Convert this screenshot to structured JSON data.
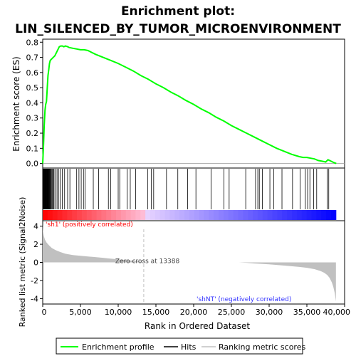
{
  "chart_data": {
    "type": "line",
    "title_line1": "Enrichment plot:",
    "title_line2": "LIN_SILENCED_BY_TUMOR_MICROENVIRONMENT",
    "es_panel": {
      "ylabel": "Enrichment score (ES)",
      "ylim": [
        -0.03,
        0.82
      ],
      "yticks": [
        "0.0",
        "0.1",
        "0.2",
        "0.3",
        "0.4",
        "0.5",
        "0.6",
        "0.7",
        "0.8"
      ],
      "ytick_values": [
        0.0,
        0.1,
        0.2,
        0.3,
        0.4,
        0.5,
        0.6,
        0.7,
        0.8
      ],
      "series": [
        {
          "name": "Enrichment profile",
          "color": "#00ff00",
          "x": [
            0,
            100,
            200,
            300,
            400,
            500,
            600,
            700,
            800,
            900,
            1000,
            1200,
            1400,
            1600,
            1800,
            2000,
            2200,
            2400,
            2600,
            2800,
            3000,
            3300,
            3500,
            4000,
            4500,
            5000,
            5500,
            6000,
            7000,
            8000,
            9000,
            10000,
            11000,
            12000,
            13000,
            14000,
            15000,
            16000,
            17000,
            18000,
            19000,
            20000,
            21000,
            22000,
            23000,
            24000,
            25000,
            26000,
            27000,
            28000,
            29000,
            30000,
            31000,
            32000,
            33000,
            34000,
            34500,
            35000,
            35500,
            36000,
            36500,
            37000,
            37500,
            37800,
            38200,
            38600,
            38900
          ],
          "y": [
            0.0,
            0.12,
            0.25,
            0.35,
            0.39,
            0.41,
            0.5,
            0.58,
            0.62,
            0.66,
            0.68,
            0.69,
            0.7,
            0.71,
            0.73,
            0.75,
            0.77,
            0.775,
            0.775,
            0.77,
            0.775,
            0.77,
            0.765,
            0.76,
            0.755,
            0.75,
            0.75,
            0.745,
            0.72,
            0.7,
            0.68,
            0.66,
            0.635,
            0.61,
            0.58,
            0.555,
            0.525,
            0.5,
            0.47,
            0.445,
            0.415,
            0.39,
            0.36,
            0.335,
            0.305,
            0.28,
            0.25,
            0.225,
            0.2,
            0.175,
            0.15,
            0.125,
            0.1,
            0.08,
            0.06,
            0.045,
            0.04,
            0.04,
            0.035,
            0.03,
            0.02,
            0.015,
            0.01,
            0.025,
            0.015,
            0.005,
            0.0
          ]
        }
      ]
    },
    "hits": [
      30,
      60,
      90,
      120,
      150,
      180,
      210,
      240,
      280,
      320,
      360,
      400,
      440,
      480,
      520,
      560,
      600,
      640,
      680,
      720,
      760,
      800,
      850,
      900,
      950,
      1000,
      1100,
      1200,
      1300,
      1400,
      1500,
      1700,
      1900,
      2100,
      2300,
      2600,
      2900,
      3300,
      3600,
      4500,
      4800,
      5100,
      5400,
      5600,
      6700,
      7400,
      8700,
      9000,
      10000,
      10200,
      11200,
      11600,
      12300,
      13900,
      14400,
      14700,
      16400,
      17900,
      19200,
      20300,
      22300,
      24000,
      24700,
      26900,
      28200,
      28500,
      28700,
      29100,
      30100,
      30600,
      31700,
      33100,
      34100,
      34800,
      35100,
      35400,
      35900,
      36300,
      37700,
      37900
    ],
    "rank_panel": {
      "ylabel": "Ranked list metric (Signal2Noise)",
      "xlabel": "Rank in Ordered Dataset",
      "ylim": [
        -4.6,
        4.6
      ],
      "yticks": [
        "4",
        "2",
        "0",
        "-2",
        "-4"
      ],
      "ytick_values": [
        4,
        2,
        0,
        -2,
        -4
      ],
      "xlim": [
        0,
        40000
      ],
      "xticks": [
        "0",
        "5,000",
        "10,000",
        "15,000",
        "20,000",
        "25,000",
        "30,000",
        "35,000",
        "40,000"
      ],
      "xtick_values": [
        0,
        5000,
        10000,
        15000,
        20000,
        25000,
        30000,
        35000,
        40000
      ],
      "metric_x": [
        0,
        50,
        150,
        300,
        500,
        800,
        1200,
        1700,
        2300,
        3000,
        4000,
        5000,
        6000,
        7000,
        8000,
        9000,
        10000,
        11000,
        12000,
        13000,
        13388,
        14000,
        16000,
        18000,
        20000,
        22000,
        24000,
        26000,
        27000,
        28000,
        30000,
        32000,
        34000,
        35000,
        36000,
        36800,
        37300,
        37700,
        38000,
        38300,
        38500,
        38700,
        38850
      ],
      "metric_y": [
        4.3,
        3.4,
        2.9,
        2.5,
        2.2,
        1.9,
        1.6,
        1.35,
        1.15,
        0.95,
        0.8,
        0.72,
        0.65,
        0.58,
        0.5,
        0.42,
        0.33,
        0.25,
        0.17,
        0.08,
        0.0,
        0.0,
        0.0,
        0.0,
        0.0,
        0.0,
        0.0,
        0.0,
        -0.05,
        -0.12,
        -0.22,
        -0.35,
        -0.5,
        -0.6,
        -0.75,
        -0.95,
        -1.15,
        -1.4,
        -1.7,
        -2.2,
        -2.7,
        -3.4,
        -4.3
      ],
      "zero_cross_label": "Zero cross at 13388",
      "zero_cross_x": 13388,
      "positive_label": "'sh1' (positively correlated)",
      "negative_label": "'shNT' (negatively correlated)",
      "positive_color": "#ff0000",
      "negative_color": "#0000ff"
    },
    "legend": {
      "placement": "bottom",
      "entries": [
        {
          "label": "Enrichment profile",
          "color": "#00ff00"
        },
        {
          "label": "Hits",
          "color": "#000000"
        },
        {
          "label": "Ranking metric scores",
          "color": "#c0c0c0"
        }
      ]
    },
    "grid": false
  }
}
